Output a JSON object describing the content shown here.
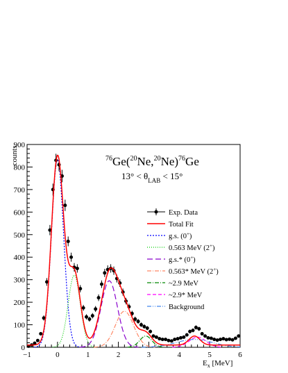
{
  "chart_data": {
    "type": "line",
    "title_parts": {
      "pre_sup": "76",
      "ge1": "Ge(",
      "sup2": "20",
      "ne1": "Ne,",
      "sup3": "20",
      "ne2": "Ne)",
      "sup4": "76",
      "ge2": "Ge"
    },
    "subtitle_parts": {
      "left": "13° < θ",
      "sub": "LAB",
      "right": " < 15°"
    },
    "xlabel": {
      "main": "E",
      "sub": "x",
      "unit": " [MeV]"
    },
    "ylabel": "counts",
    "xlim": [
      -1,
      6
    ],
    "ylim": [
      0,
      900
    ],
    "x_ticks": [
      "−1",
      "0",
      "1",
      "2",
      "3",
      "4",
      "5",
      "6"
    ],
    "y_ticks": [
      "0",
      "100",
      "200",
      "300",
      "400",
      "500",
      "600",
      "700",
      "800",
      "900"
    ],
    "legend_position": "right",
    "legend": {
      "exp": "Exp. Data",
      "total": "Total Fit",
      "gs": "g.s. (0",
      "gs_sup": "+",
      "gs_end": ")",
      "p0563": "0.563 MeV (2",
      "p0563_sup": "+",
      "p0563_end": ")",
      "gsstar": "g.s.* (0",
      "gsstar_sup": "+",
      "gsstar_end": ")",
      "p0563star": "0.563* MeV (2",
      "p0563star_sup": "+",
      "p0563star_end": ")",
      "p29": "~2.9 MeV",
      "p29star": "~2.9* MeV",
      "bg": "Background"
    },
    "colors": {
      "exp": "#000000",
      "total": "#ff0000",
      "gs": "#0000ff",
      "p0563": "#00cc00",
      "gsstar": "#8800cc",
      "p0563star": "#ff8866",
      "p29": "#008800",
      "p29star": "#ff00ff",
      "bg": "#4488ee"
    },
    "experimental_data": [
      {
        "x": -0.95,
        "y": 5
      },
      {
        "x": -0.85,
        "y": 10
      },
      {
        "x": -0.75,
        "y": 18
      },
      {
        "x": -0.65,
        "y": 30
      },
      {
        "x": -0.55,
        "y": 60
      },
      {
        "x": -0.45,
        "y": 130
      },
      {
        "x": -0.35,
        "y": 290
      },
      {
        "x": -0.25,
        "y": 520
      },
      {
        "x": -0.15,
        "y": 700
      },
      {
        "x": -0.05,
        "y": 830
      },
      {
        "x": 0.05,
        "y": 810
      },
      {
        "x": 0.15,
        "y": 760
      },
      {
        "x": 0.25,
        "y": 630
      },
      {
        "x": 0.35,
        "y": 470
      },
      {
        "x": 0.45,
        "y": 400
      },
      {
        "x": 0.55,
        "y": 355
      },
      {
        "x": 0.65,
        "y": 350
      },
      {
        "x": 0.75,
        "y": 260
      },
      {
        "x": 0.85,
        "y": 175
      },
      {
        "x": 0.95,
        "y": 135
      },
      {
        "x": 1.05,
        "y": 125
      },
      {
        "x": 1.15,
        "y": 140
      },
      {
        "x": 1.25,
        "y": 170
      },
      {
        "x": 1.35,
        "y": 220
      },
      {
        "x": 1.45,
        "y": 280
      },
      {
        "x": 1.55,
        "y": 330
      },
      {
        "x": 1.65,
        "y": 345
      },
      {
        "x": 1.75,
        "y": 350
      },
      {
        "x": 1.85,
        "y": 340
      },
      {
        "x": 1.95,
        "y": 305
      },
      {
        "x": 2.05,
        "y": 285
      },
      {
        "x": 2.15,
        "y": 245
      },
      {
        "x": 2.25,
        "y": 205
      },
      {
        "x": 2.35,
        "y": 180
      },
      {
        "x": 2.45,
        "y": 150
      },
      {
        "x": 2.55,
        "y": 125
      },
      {
        "x": 2.65,
        "y": 115
      },
      {
        "x": 2.75,
        "y": 100
      },
      {
        "x": 2.85,
        "y": 92
      },
      {
        "x": 2.95,
        "y": 85
      },
      {
        "x": 3.05,
        "y": 70
      },
      {
        "x": 3.15,
        "y": 50
      },
      {
        "x": 3.25,
        "y": 45
      },
      {
        "x": 3.35,
        "y": 38
      },
      {
        "x": 3.45,
        "y": 35
      },
      {
        "x": 3.55,
        "y": 35
      },
      {
        "x": 3.65,
        "y": 30
      },
      {
        "x": 3.75,
        "y": 28
      },
      {
        "x": 3.85,
        "y": 35
      },
      {
        "x": 3.95,
        "y": 38
      },
      {
        "x": 4.05,
        "y": 42
      },
      {
        "x": 4.15,
        "y": 45
      },
      {
        "x": 4.25,
        "y": 55
      },
      {
        "x": 4.35,
        "y": 70
      },
      {
        "x": 4.45,
        "y": 75
      },
      {
        "x": 4.55,
        "y": 88
      },
      {
        "x": 4.65,
        "y": 82
      },
      {
        "x": 4.75,
        "y": 60
      },
      {
        "x": 4.85,
        "y": 50
      },
      {
        "x": 4.95,
        "y": 42
      },
      {
        "x": 5.05,
        "y": 40
      },
      {
        "x": 5.15,
        "y": 35
      },
      {
        "x": 5.25,
        "y": 32
      },
      {
        "x": 5.35,
        "y": 35
      },
      {
        "x": 5.45,
        "y": 38
      },
      {
        "x": 5.55,
        "y": 34
      },
      {
        "x": 5.65,
        "y": 36
      },
      {
        "x": 5.75,
        "y": 33
      },
      {
        "x": 5.85,
        "y": 40
      },
      {
        "x": 5.95,
        "y": 50
      }
    ],
    "fit_components": [
      {
        "key": "gs",
        "center": 0.0,
        "amplitude": 835,
        "sigma": 0.2
      },
      {
        "key": "p0563",
        "center": 0.55,
        "amplitude": 320,
        "sigma": 0.2
      },
      {
        "key": "gsstar",
        "center": 1.7,
        "amplitude": 295,
        "sigma": 0.27
      },
      {
        "key": "p0563star",
        "center": 2.2,
        "amplitude": 160,
        "sigma": 0.3
      },
      {
        "key": "p29",
        "center": 2.9,
        "amplitude": 50,
        "sigma": 0.2
      },
      {
        "key": "p29star",
        "center": 4.6,
        "amplitude": 45,
        "sigma": 0.28
      },
      {
        "key": "bg",
        "center": 4.5,
        "amplitude": 35,
        "sigma": 0.6
      }
    ],
    "background_level": 10,
    "bump_4_5": {
      "center": 4.5,
      "amplitude": 40,
      "sigma": 0.18
    }
  }
}
